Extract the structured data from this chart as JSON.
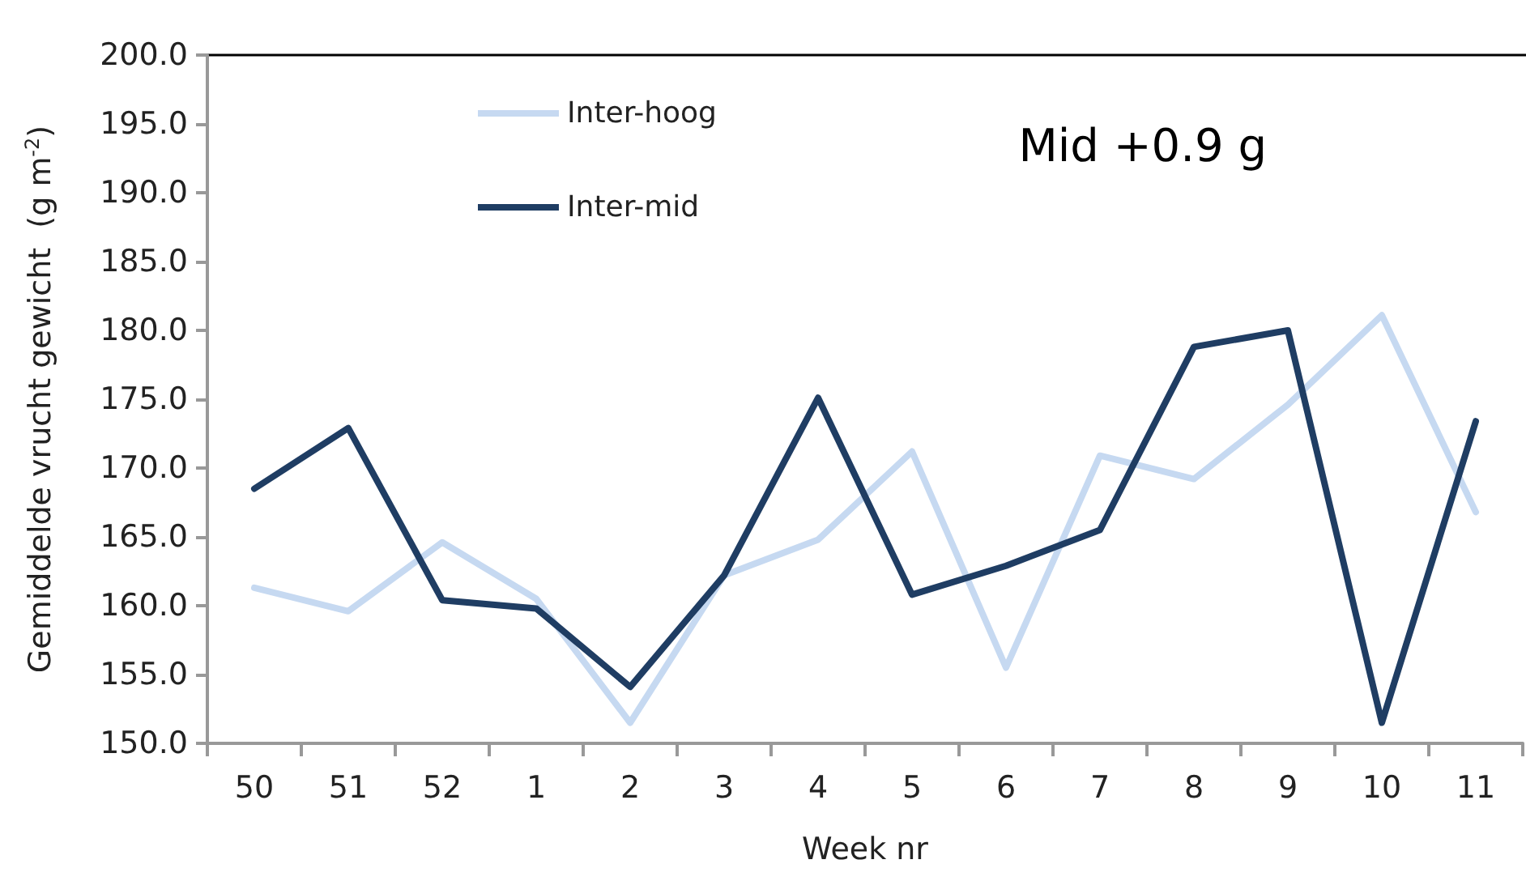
{
  "chart_data": {
    "type": "line",
    "xlabel": "Week nr",
    "ylabel": "Gemiddelde vrucht gewicht  (g m$^{-2}$)",
    "annotations": [
      "Mid +0.9 g"
    ],
    "categories": [
      "50",
      "51",
      "52",
      "1",
      "2",
      "3",
      "4",
      "5",
      "6",
      "7",
      "8",
      "9",
      "10",
      "11"
    ],
    "series": [
      {
        "name": "Inter-hoog",
        "color": "#c6d9f1",
        "values": [
          161.3,
          159.6,
          164.6,
          160.5,
          151.5,
          162.2,
          164.8,
          171.2,
          155.5,
          170.9,
          169.2,
          174.6,
          181.1,
          166.8
        ]
      },
      {
        "name": "Inter-mid",
        "color": "#1f3d63",
        "values": [
          168.5,
          172.9,
          160.4,
          159.8,
          154.1,
          162.2,
          175.1,
          160.8,
          162.9,
          165.5,
          178.8,
          180.0,
          151.5,
          173.4
        ]
      }
    ],
    "ylim": [
      150,
      200
    ],
    "yticks": [
      {
        "value": 150,
        "label": "150.0"
      },
      {
        "value": 155,
        "label": "155.0"
      },
      {
        "value": 160,
        "label": "160.0"
      },
      {
        "value": 165,
        "label": "165.0"
      },
      {
        "value": 170,
        "label": "170.0"
      },
      {
        "value": 175,
        "label": "175.0"
      },
      {
        "value": 180,
        "label": "180.0"
      },
      {
        "value": 185,
        "label": "185.0"
      },
      {
        "value": 190,
        "label": "190.0"
      },
      {
        "value": 195,
        "label": "195.0"
      },
      {
        "value": 200,
        "label": "200.0"
      }
    ],
    "grid": false,
    "legend": "top left",
    "marker": "none",
    "line_style": "solid"
  }
}
